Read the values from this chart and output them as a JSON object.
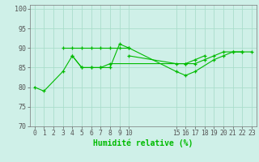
{
  "xlabel": "Humidité relative (%)",
  "bg_color": "#cff0e8",
  "grid_color": "#aaddcc",
  "line_color": "#00bb00",
  "xlim": [
    -0.5,
    23.5
  ],
  "ylim": [
    70,
    101
  ],
  "yticks": [
    70,
    75,
    80,
    85,
    90,
    95,
    100
  ],
  "xtick_positions": [
    0,
    1,
    2,
    3,
    4,
    5,
    6,
    7,
    8,
    9,
    10,
    15,
    16,
    17,
    18,
    19,
    20,
    21,
    22,
    23
  ],
  "xtick_labels": [
    "0",
    "1",
    "2",
    "3",
    "4",
    "5",
    "6",
    "7",
    "8",
    "9",
    "10",
    "15",
    "16",
    "17",
    "18",
    "19",
    "20",
    "21",
    "22",
    "23"
  ],
  "series": [
    {
      "x": [
        0,
        1,
        3,
        4,
        5,
        6,
        7,
        8,
        9,
        10,
        15,
        16,
        17,
        19,
        20,
        21,
        22
      ],
      "y": [
        80,
        79,
        84,
        88,
        85,
        85,
        85,
        85,
        91,
        90,
        84,
        83,
        84,
        87,
        88,
        89,
        89
      ]
    },
    {
      "x": [
        3,
        4,
        5,
        6,
        7,
        8,
        9,
        10
      ],
      "y": [
        90,
        90,
        90,
        90,
        90,
        90,
        90,
        90
      ]
    },
    {
      "x": [
        10,
        15,
        16,
        17,
        18,
        19,
        20,
        21,
        22,
        23
      ],
      "y": [
        88,
        86,
        86,
        86,
        87,
        88,
        89,
        89,
        89,
        89
      ]
    },
    {
      "x": [
        4,
        5,
        6,
        7,
        8,
        16,
        17,
        18
      ],
      "y": [
        88,
        85,
        85,
        85,
        86,
        86,
        87,
        88
      ]
    }
  ]
}
